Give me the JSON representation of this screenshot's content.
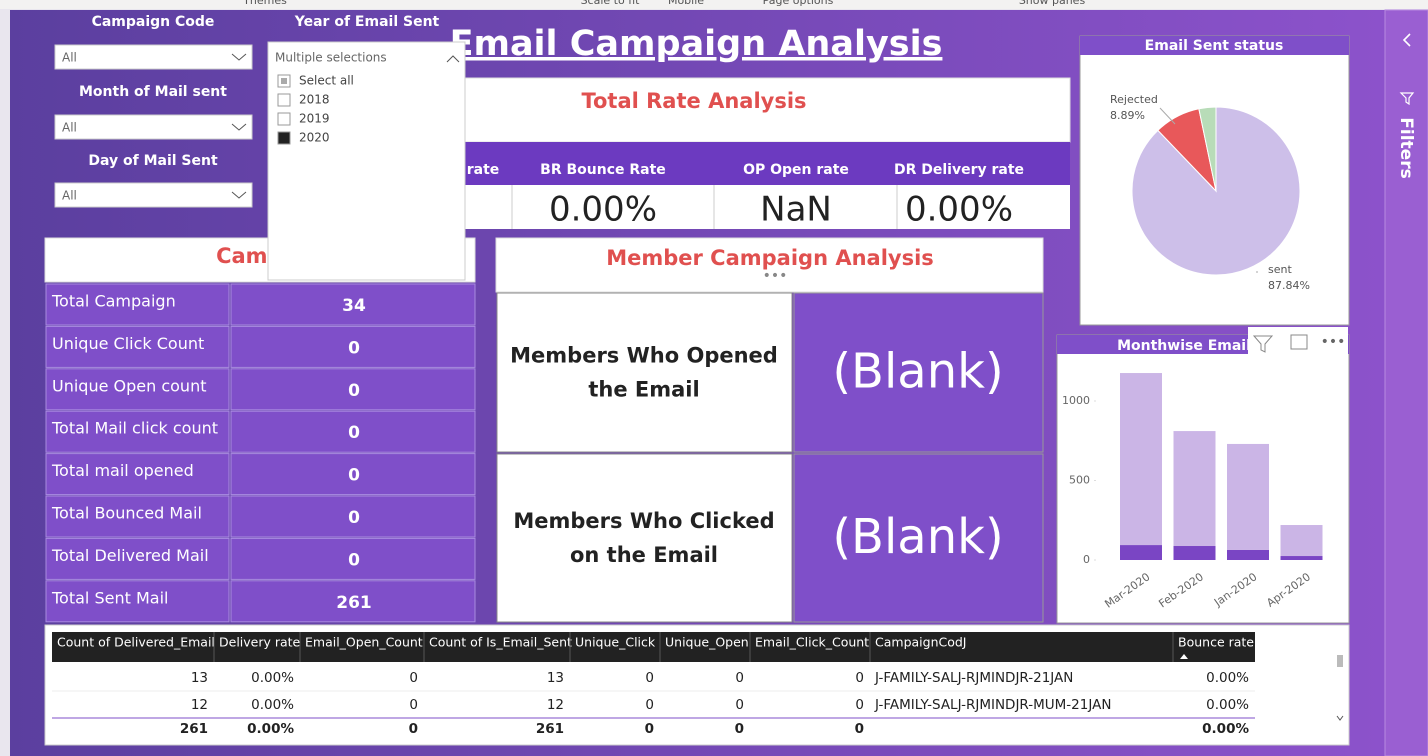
{
  "toolbar": [
    "Themes",
    "Scale to fit",
    "Mobile",
    "Page options",
    "Show panes"
  ],
  "title": "Email Campaign Analysis",
  "slicers": [
    {
      "label": "Campaign Code",
      "value": "All"
    },
    {
      "label": "Month of Mail sent",
      "value": "All"
    },
    {
      "label": "Day of Mail Sent",
      "value": "All"
    }
  ],
  "year_slicer": {
    "label": "Year of Email Sent",
    "value": "Multiple selections",
    "options": [
      "Select all",
      "2018",
      "2019",
      "2020"
    ]
  },
  "rate_panel": {
    "title": "Total Rate Analysis",
    "columns": [
      {
        "header": "rate"
      },
      {
        "header": "BR Bounce Rate",
        "value": "0.00%"
      },
      {
        "header": "OP Open rate",
        "value": "NaN"
      },
      {
        "header": "DR Delivery rate",
        "value": "0.00%"
      }
    ]
  },
  "campaign_panel": {
    "title": "Campai",
    "rows": [
      {
        "label": "Total Campaign",
        "value": 34
      },
      {
        "label": "Unique Click Count",
        "value": 0
      },
      {
        "label": "Unique Open count",
        "value": 0
      },
      {
        "label": "Total Mail click count",
        "value": 0
      },
      {
        "label": "Total mail opened",
        "value": 0
      },
      {
        "label": "Total Bounced Mail",
        "value": 0
      },
      {
        "label": "Total Delivered Mail",
        "value": 0
      },
      {
        "label": "Total Sent Mail",
        "value": 261
      }
    ]
  },
  "member_panel": {
    "title": "Member Campaign Analysis",
    "rows": [
      {
        "label": [
          "Members Who Opened",
          "the Email"
        ],
        "value": "(Blank)"
      },
      {
        "label": [
          "Members Who Clicked",
          "on the Email"
        ],
        "value": "(Blank)"
      }
    ]
  },
  "chart_data": [
    {
      "type": "pie",
      "title": "Email Sent status",
      "categories": [
        "sent",
        "Rejected",
        null
      ],
      "values": [
        87.84,
        8.89,
        3.27
      ],
      "value_labels": [
        "87.84%",
        "8.89%",
        null
      ],
      "colors": [
        "#cdbfe9",
        "#e8585a",
        "#b8dcb8"
      ]
    },
    {
      "type": "bar",
      "stacked": true,
      "title": "Monthwise Email",
      "categories": [
        "Mar-2020",
        "Feb-2020",
        "Jan-2020",
        "Apr-2020"
      ],
      "series": [
        {
          "color": "#7a45c4",
          "values": [
            94,
            88,
            63,
            25
          ]
        },
        {
          "color": "#cbb5e6",
          "values": [
            1082,
            723,
            667,
            195
          ]
        }
      ],
      "ylim": [
        0,
        1258
      ],
      "yticks": [
        0,
        500,
        1000
      ]
    }
  ],
  "table": {
    "columns": [
      "Count of Delivered_Email",
      "Delivery rate",
      "Email_Open_Count",
      "Count of Is_Email_Sent",
      "Unique_Click",
      "Unique_Open",
      "Email_Click_Count",
      "CampaignCodJ",
      "Bounce rate"
    ],
    "rows": [
      [
        13,
        "0.00%",
        0,
        13,
        0,
        0,
        0,
        "J-FAMILY-SALJ-RJMINDJR-21JAN",
        "0.00%"
      ],
      [
        12,
        "0.00%",
        0,
        12,
        0,
        0,
        0,
        "J-FAMILY-SALJ-RJMINDJR-MUM-21JAN",
        "0.00%"
      ]
    ],
    "total": [
      261,
      "0.00%",
      0,
      261,
      0,
      0,
      0,
      null,
      "0.00%"
    ]
  },
  "filters_pane": "Filters"
}
